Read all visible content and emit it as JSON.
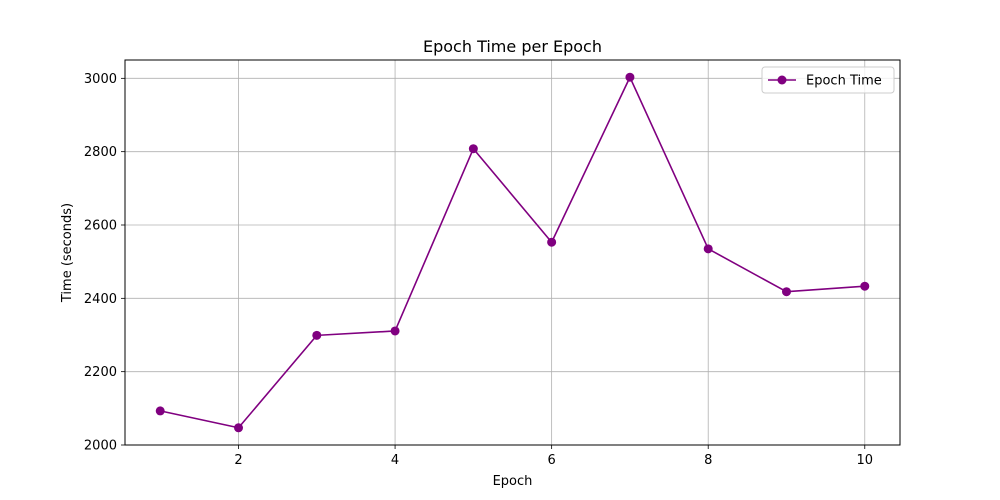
{
  "chart_data": {
    "type": "line",
    "title": "Epoch Time per Epoch",
    "xlabel": "Epoch",
    "ylabel": "Time (seconds)",
    "xlim": [
      0.55,
      10.45
    ],
    "ylim": [
      2000,
      3050
    ],
    "xticks": [
      2,
      4,
      6,
      8,
      10
    ],
    "yticks": [
      2000,
      2200,
      2400,
      2600,
      2800,
      3000
    ],
    "grid": true,
    "legend_position": "top-right",
    "series": [
      {
        "name": "Epoch Time",
        "color": "#800080",
        "marker": "circle",
        "x": [
          1,
          2,
          3,
          4,
          5,
          6,
          7,
          8,
          9,
          10
        ],
        "y": [
          2093,
          2047,
          2299,
          2311,
          2808,
          2553,
          3003,
          2535,
          2418,
          2433
        ]
      }
    ]
  }
}
